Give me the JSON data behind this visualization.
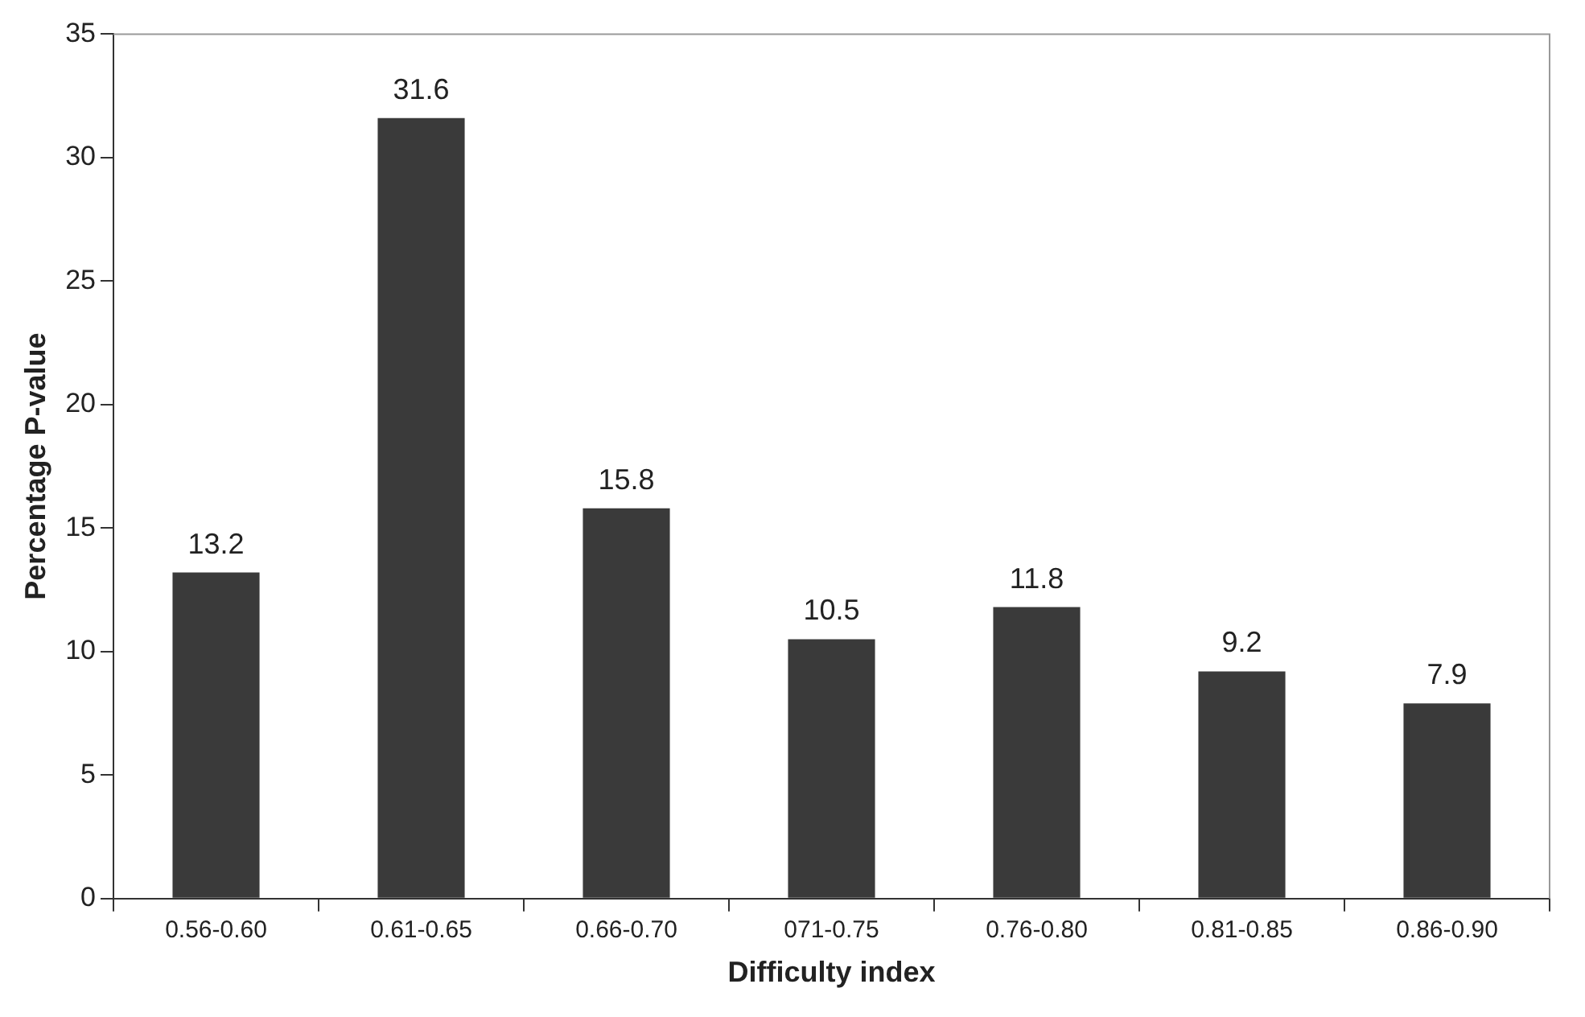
{
  "chart_data": {
    "type": "bar",
    "xlabel": "Difficulty index",
    "ylabel": "Percentage P-value",
    "categories": [
      "0.56-0.60",
      "0.61-0.65",
      "0.66-0.70",
      "071-0.75",
      "0.76-0.80",
      "0.81-0.85",
      "0.86-0.90"
    ],
    "values": [
      13.2,
      31.6,
      15.8,
      10.5,
      11.8,
      9.2,
      7.9
    ],
    "color": "#3a3a3a",
    "ylim": [
      0,
      35
    ],
    "yticks": [
      0,
      5,
      10,
      15,
      20,
      25,
      30,
      35
    ],
    "grid": false,
    "legend": false,
    "data_labels": true
  }
}
